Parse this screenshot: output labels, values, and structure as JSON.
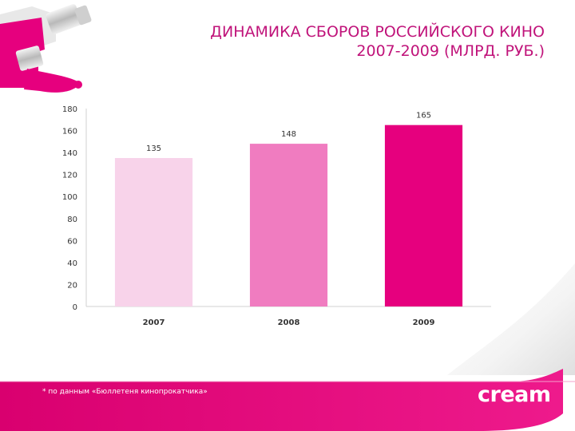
{
  "title": {
    "line1": "ДИНАМИКА СБОРОВ РОССИЙСКОГО КИНО",
    "line2": "2007-2009 (МЛРД. РУБ.)"
  },
  "footnote": "* по данным «Бюллетеня кинопрокатчика»",
  "logo_text": "cream",
  "colors": {
    "accent": "#e6007e",
    "title": "#c0137a",
    "axis": "#d0d0d0"
  },
  "chart_data": {
    "type": "bar",
    "categories": [
      "2007",
      "2008",
      "2009"
    ],
    "values": [
      135,
      148,
      165
    ],
    "bar_colors": [
      "#f8d3ea",
      "#f07cc0",
      "#e6007e"
    ],
    "ylim": [
      0,
      180
    ],
    "yticks": [
      0,
      20,
      40,
      60,
      80,
      100,
      120,
      140,
      160,
      180
    ],
    "grid": false,
    "legend": "none"
  }
}
